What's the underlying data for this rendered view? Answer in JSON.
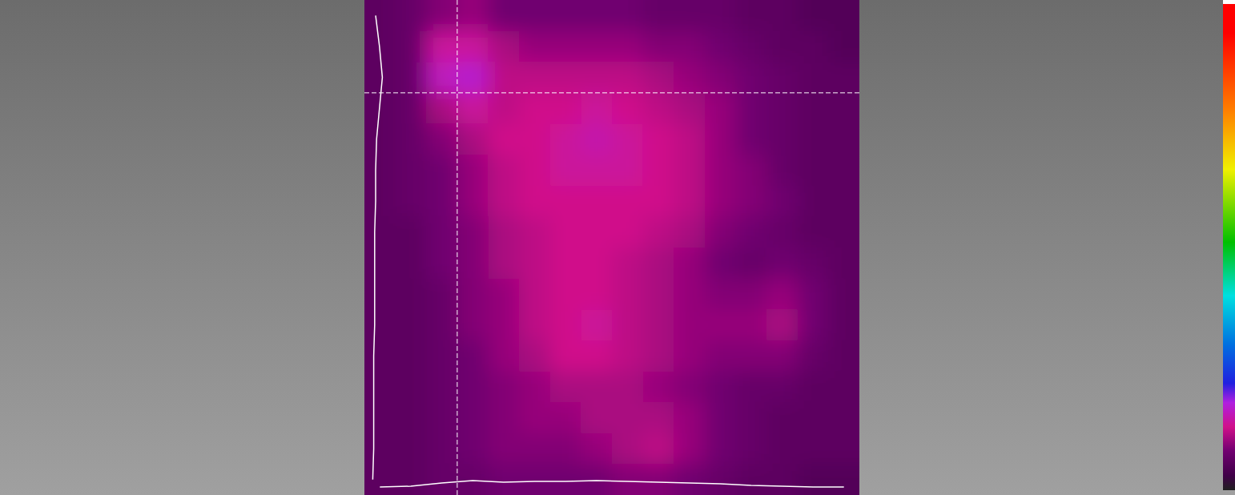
{
  "chart_data": {
    "type": "heatmap",
    "tick_labels": false,
    "xlim": [
      0,
      16
    ],
    "ylim": [
      0,
      16
    ],
    "crosshair": {
      "x": 3,
      "y": 3
    },
    "colorbar": {
      "range": [
        0,
        100
      ]
    },
    "cells": [
      [
        6,
        7,
        9,
        10,
        8,
        8,
        8,
        8,
        8,
        7,
        7,
        7,
        6,
        6,
        5,
        5
      ],
      [
        6,
        7,
        14,
        14,
        11,
        10,
        10,
        10,
        10,
        9,
        9,
        8,
        7,
        6,
        6,
        5
      ],
      [
        6,
        7,
        16,
        17,
        12,
        12,
        12,
        12,
        12,
        11,
        10,
        9,
        8,
        7,
        6,
        6
      ],
      [
        6,
        7,
        11,
        14,
        12,
        13,
        13,
        14,
        13,
        12,
        11,
        10,
        8,
        7,
        6,
        6
      ],
      [
        6,
        7,
        9,
        11,
        13,
        13,
        14,
        15,
        14,
        13,
        12,
        10,
        8,
        7,
        6,
        6
      ],
      [
        6,
        7,
        8,
        10,
        12,
        13,
        14,
        14,
        14,
        13,
        12,
        10,
        9,
        7,
        6,
        6
      ],
      [
        6,
        7,
        8,
        10,
        12,
        13,
        13,
        13,
        13,
        13,
        12,
        10,
        9,
        8,
        6,
        6
      ],
      [
        6,
        6,
        8,
        9,
        11,
        12,
        13,
        13,
        13,
        12,
        11,
        9,
        8,
        7,
        6,
        6
      ],
      [
        6,
        6,
        8,
        9,
        11,
        12,
        13,
        13,
        12,
        11,
        10,
        8,
        7,
        8,
        7,
        6
      ],
      [
        6,
        6,
        7,
        9,
        10,
        12,
        13,
        13,
        12,
        11,
        10,
        9,
        9,
        10,
        8,
        6
      ],
      [
        6,
        6,
        7,
        9,
        10,
        12,
        13,
        14,
        12,
        11,
        10,
        10,
        10,
        11,
        8,
        6
      ],
      [
        6,
        6,
        7,
        8,
        10,
        11,
        13,
        13,
        12,
        11,
        10,
        9,
        9,
        9,
        7,
        6
      ],
      [
        6,
        6,
        7,
        8,
        9,
        10,
        11,
        11,
        11,
        10,
        9,
        8,
        7,
        7,
        6,
        6
      ],
      [
        6,
        6,
        7,
        8,
        9,
        10,
        10,
        11,
        11,
        11,
        10,
        8,
        7,
        6,
        6,
        6
      ],
      [
        6,
        6,
        7,
        8,
        9,
        9,
        9,
        10,
        11,
        12,
        10,
        8,
        7,
        6,
        6,
        6
      ],
      [
        6,
        6,
        7,
        7,
        8,
        8,
        8,
        8,
        9,
        9,
        8,
        7,
        6,
        6,
        5,
        5
      ]
    ]
  }
}
